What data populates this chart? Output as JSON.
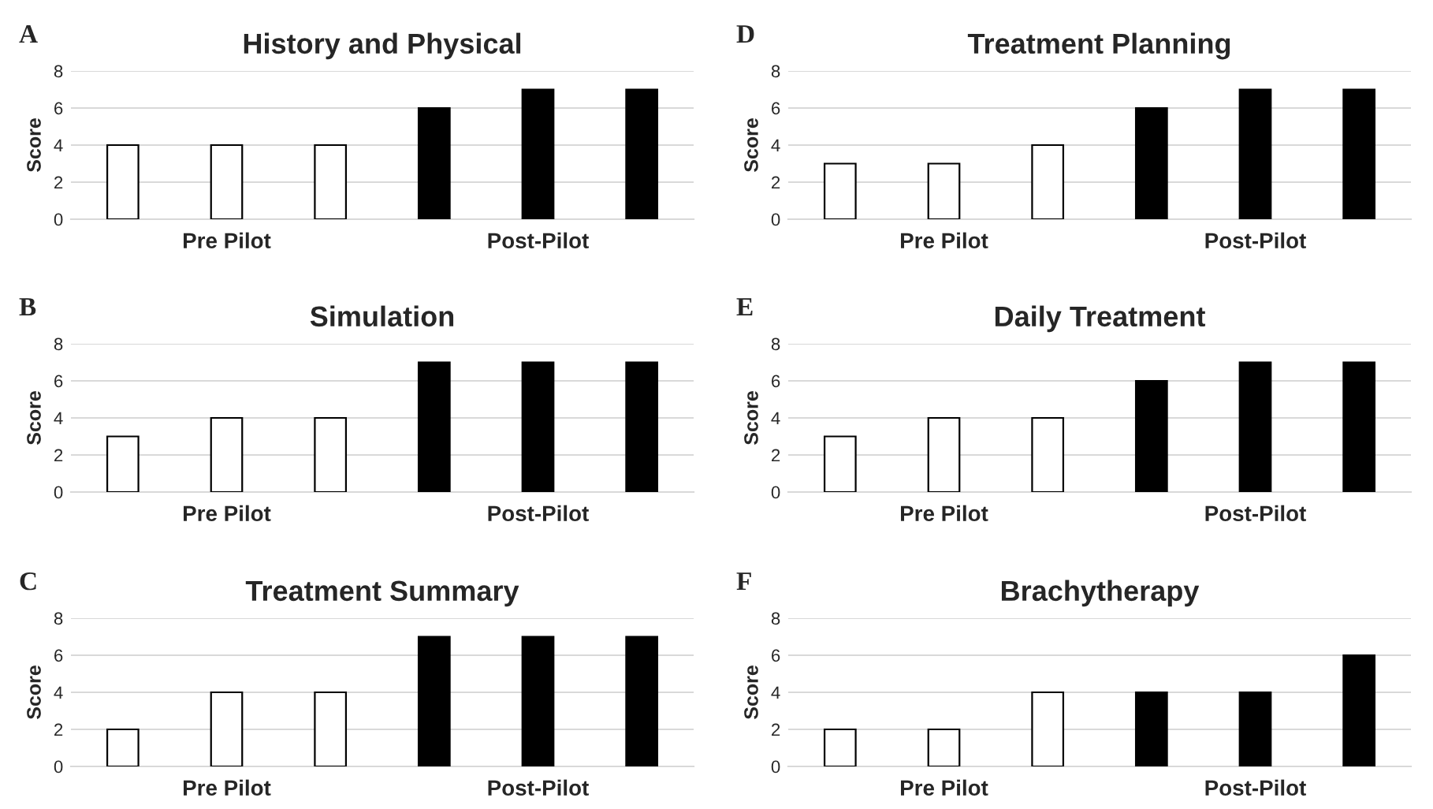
{
  "chart_data": [
    {
      "type": "bar",
      "title": "History and Physical",
      "ylabel": "Score",
      "annotations": [
        "A"
      ],
      "categories": [
        null,
        "Pre Pilot",
        null,
        null,
        "Post-Pilot",
        null
      ],
      "values": [
        4,
        4,
        4,
        6,
        7,
        7
      ],
      "colors": [
        "#ffffff",
        "#ffffff",
        "#ffffff",
        "#000000",
        "#000000",
        "#000000"
      ],
      "ylim": [
        0,
        8
      ],
      "yticks": [
        0,
        2,
        4,
        6,
        8
      ],
      "grid": "y",
      "legend": false
    },
    {
      "type": "bar",
      "title": "Treatment Planning",
      "ylabel": "Score",
      "annotations": [
        "D"
      ],
      "categories": [
        null,
        "Pre Pilot",
        null,
        null,
        "Post-Pilot",
        null
      ],
      "values": [
        3,
        3,
        4,
        6,
        7,
        7
      ],
      "colors": [
        "#ffffff",
        "#ffffff",
        "#ffffff",
        "#000000",
        "#000000",
        "#000000"
      ],
      "ylim": [
        0,
        8
      ],
      "yticks": [
        0,
        2,
        4,
        6,
        8
      ],
      "grid": "y",
      "legend": false
    },
    {
      "type": "bar",
      "title": "Simulation",
      "ylabel": "Score",
      "annotations": [
        "B"
      ],
      "categories": [
        null,
        "Pre Pilot",
        null,
        null,
        "Post-Pilot",
        null
      ],
      "values": [
        3,
        4,
        4,
        7,
        7,
        7
      ],
      "colors": [
        "#ffffff",
        "#ffffff",
        "#ffffff",
        "#000000",
        "#000000",
        "#000000"
      ],
      "ylim": [
        0,
        8
      ],
      "yticks": [
        0,
        2,
        4,
        6,
        8
      ],
      "grid": "y",
      "legend": false
    },
    {
      "type": "bar",
      "title": "Daily Treatment",
      "ylabel": "Score",
      "annotations": [
        "E"
      ],
      "categories": [
        null,
        "Pre Pilot",
        null,
        null,
        "Post-Pilot",
        null
      ],
      "values": [
        3,
        4,
        4,
        6,
        7,
        7
      ],
      "colors": [
        "#ffffff",
        "#ffffff",
        "#ffffff",
        "#000000",
        "#000000",
        "#000000"
      ],
      "ylim": [
        0,
        8
      ],
      "yticks": [
        0,
        2,
        4,
        6,
        8
      ],
      "grid": "y",
      "legend": false
    },
    {
      "type": "bar",
      "title": "Treatment Summary",
      "ylabel": "Score",
      "annotations": [
        "C"
      ],
      "categories": [
        null,
        "Pre Pilot",
        null,
        null,
        "Post-Pilot",
        null
      ],
      "values": [
        2,
        4,
        4,
        7,
        7,
        7
      ],
      "colors": [
        "#ffffff",
        "#ffffff",
        "#ffffff",
        "#000000",
        "#000000",
        "#000000"
      ],
      "ylim": [
        0,
        8
      ],
      "yticks": [
        0,
        2,
        4,
        6,
        8
      ],
      "grid": "y",
      "legend": false
    },
    {
      "type": "bar",
      "title": "Brachytherapy",
      "ylabel": "Score",
      "annotations": [
        "F"
      ],
      "categories": [
        null,
        "Pre Pilot",
        null,
        null,
        "Post-Pilot",
        null
      ],
      "values": [
        2,
        2,
        4,
        4,
        4,
        6
      ],
      "colors": [
        "#ffffff",
        "#ffffff",
        "#ffffff",
        "#000000",
        "#000000",
        "#000000"
      ],
      "ylim": [
        0,
        8
      ],
      "yticks": [
        0,
        2,
        4,
        6,
        8
      ],
      "grid": "y",
      "legend": false
    }
  ]
}
